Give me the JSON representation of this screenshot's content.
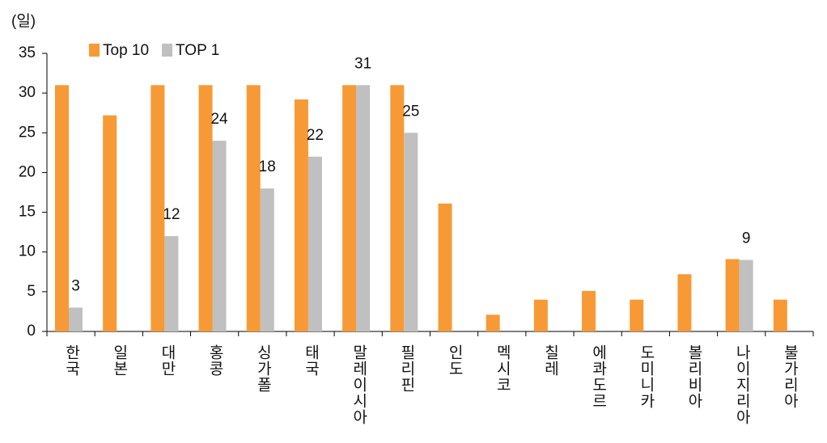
{
  "chart_data": {
    "type": "bar",
    "y_label": "(일)",
    "categories": [
      "한국",
      "일본",
      "대만",
      "홍콩",
      "싱가폴",
      "태국",
      "말레이시아",
      "필리핀",
      "인도",
      "멕시코",
      "칠레",
      "에콰도르",
      "도미니카",
      "볼리비아",
      "나이지리아",
      "불가리아"
    ],
    "series": [
      {
        "name": "Top 10",
        "color": "#f79a35",
        "values": [
          31,
          27.2,
          31,
          31,
          31,
          29.2,
          31,
          31,
          16.1,
          2.1,
          4,
          5.1,
          4,
          7.2,
          9.1,
          4
        ]
      },
      {
        "name": "TOP 1",
        "color": "#c0c0c0",
        "values": [
          3,
          null,
          12,
          24,
          18,
          22,
          31,
          25,
          null,
          null,
          null,
          null,
          null,
          null,
          9,
          null
        ],
        "data_labels": true
      }
    ],
    "ylim": [
      0,
      35
    ],
    "yticks": [
      0,
      5,
      10,
      15,
      20,
      25,
      30,
      35
    ],
    "legend": "top-left"
  }
}
